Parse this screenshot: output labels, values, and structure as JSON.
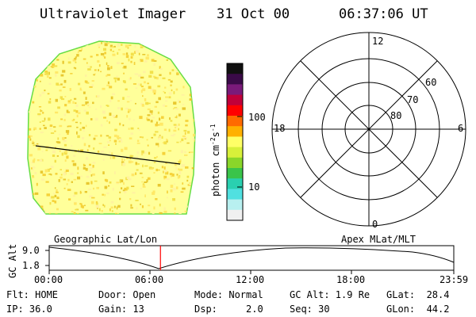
{
  "header": {
    "title": "Ultraviolet Imager",
    "date": "31 Oct 00",
    "time": "06:37:06 UT"
  },
  "left_panel": {
    "label": "Geographic Lat/Lon"
  },
  "right_panel": {
    "label": "Apex MLat/MLT",
    "mlt_labels": [
      "12",
      "18",
      "6",
      "0"
    ],
    "lat_labels": [
      "60",
      "70",
      "80"
    ]
  },
  "colorbar": {
    "unit_label": "photon cm",
    "unit_sup1": "-2",
    "unit_s": "s",
    "unit_sup2": "-1",
    "tick_labels": [
      "100",
      "10"
    ],
    "colors": [
      "#101010",
      "#3a0a48",
      "#7a1a7a",
      "#c0003a",
      "#ff0000",
      "#ff6a00",
      "#ffb000",
      "#ffff66",
      "#d8f03a",
      "#8ad62a",
      "#3ac44a",
      "#2ad0b0",
      "#50e0e0",
      "#b8f0f0",
      "#f0f0f0"
    ]
  },
  "gc_alt_plot": {
    "axis_label": "GC Alt",
    "y_ticks": [
      "9.0",
      "1.8"
    ],
    "x_ticks": [
      "00:00",
      "06:00",
      "12:00",
      "18:00",
      "23:59"
    ],
    "current_time_fraction": 0.275
  },
  "info": {
    "col1": [
      "Flt: HOME",
      "IP: 36.0"
    ],
    "col2": [
      "Door: Open",
      "Gain: 13"
    ],
    "col3": [
      "Mode: Normal",
      "Dsp:     2.0"
    ],
    "col4": [
      "GC Alt: 1.9 Re",
      "Seq: 30"
    ],
    "col5": [
      "GLat:  28.4",
      "GLon:  44.2"
    ]
  }
}
